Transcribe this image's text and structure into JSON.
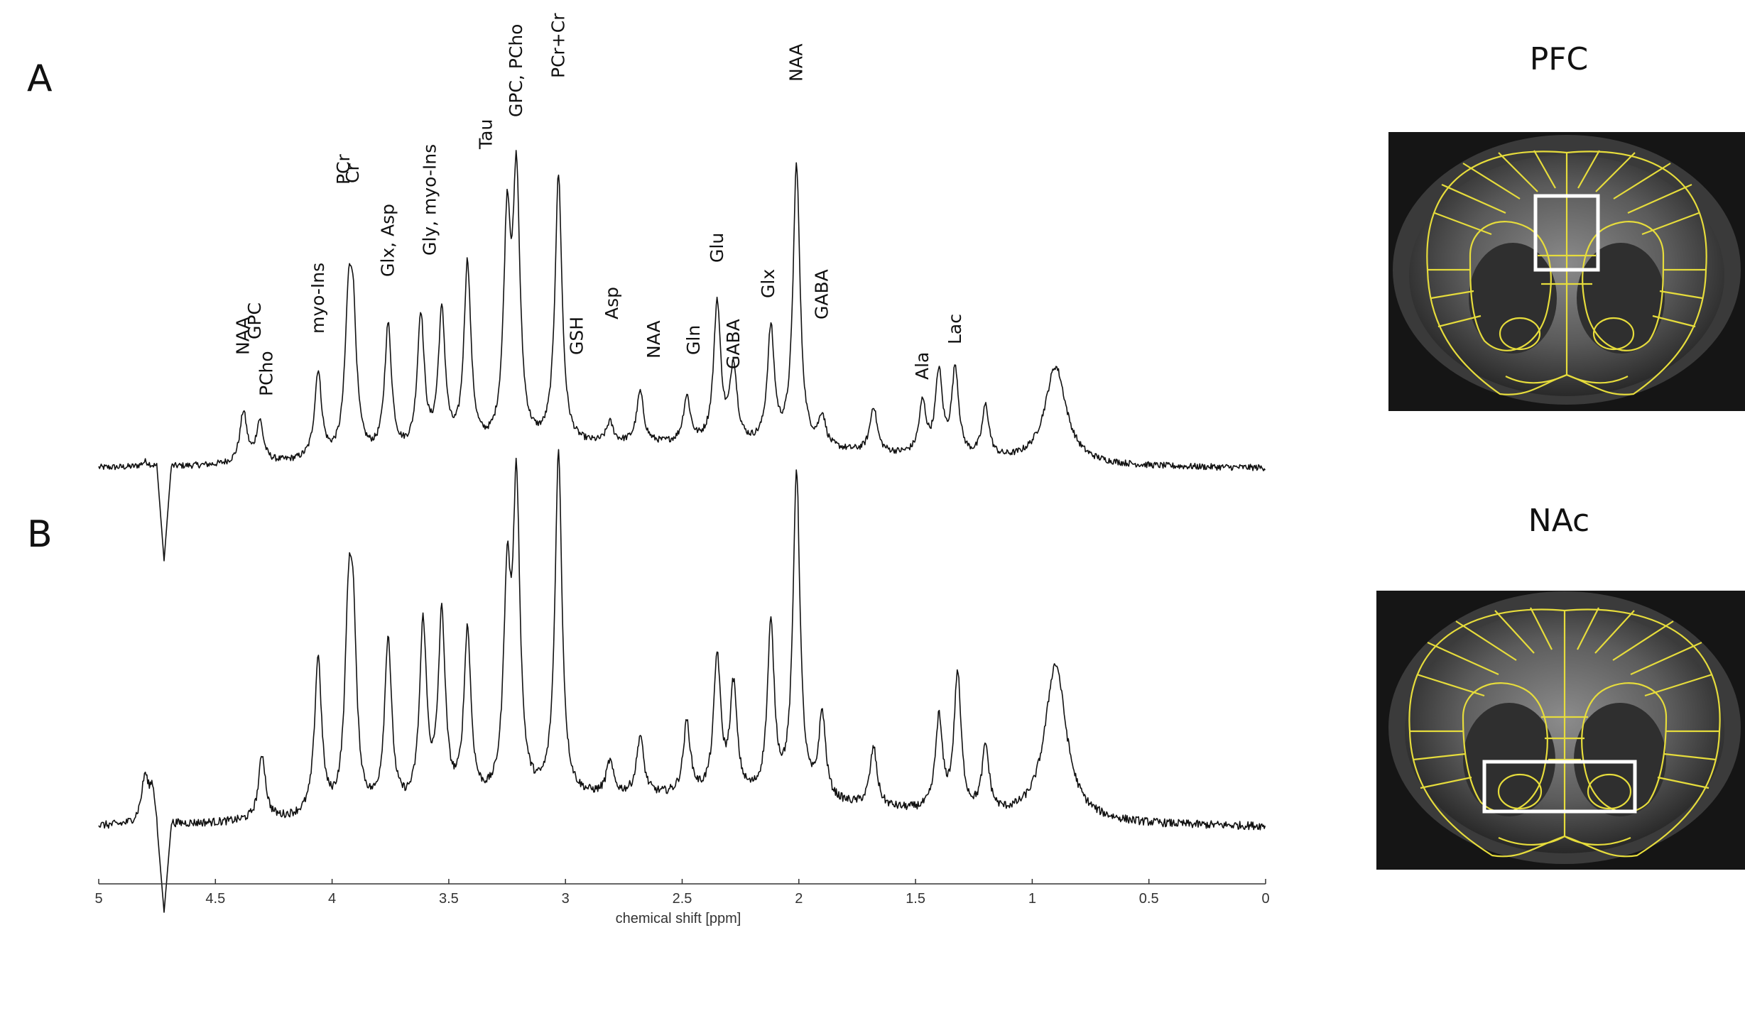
{
  "figure": {
    "panel_letters": [
      "A",
      "B"
    ],
    "regions": [
      {
        "title": "PFC",
        "image": "brain-mri-coronal-slice-with-atlas-overlay"
      },
      {
        "title": "NAc",
        "image": "brain-mri-coronal-slice-with-atlas-overlay"
      }
    ]
  },
  "chart_data": {
    "type": "line",
    "xlabel": "chemical shift [ppm]",
    "ylabel": "",
    "xlim": [
      5,
      0
    ],
    "x_reversed": true,
    "xticks": [
      5,
      4.5,
      4,
      3.5,
      3,
      2.5,
      2,
      1.5,
      1,
      0.5,
      0
    ],
    "xtick_labels": [
      "5",
      "4.5",
      "4",
      "3.5",
      "3",
      "2.5",
      "2",
      "1.5",
      "1",
      "0.5",
      "0"
    ],
    "grid": false,
    "series": [
      {
        "panel": "A",
        "peaks": [
          [
            4.8,
            0.02
          ],
          [
            4.38,
            0.2
          ],
          [
            4.31,
            0.16
          ],
          [
            4.06,
            0.34
          ],
          [
            3.93,
            0.5
          ],
          [
            3.91,
            0.48
          ],
          [
            3.76,
            0.5
          ],
          [
            3.62,
            0.53
          ],
          [
            3.53,
            0.53
          ],
          [
            3.42,
            0.72
          ],
          [
            3.25,
            0.83
          ],
          [
            3.21,
            1.0
          ],
          [
            3.03,
            1.05
          ],
          [
            2.81,
            0.08
          ],
          [
            2.68,
            0.2
          ],
          [
            2.48,
            0.18
          ],
          [
            2.35,
            0.55
          ],
          [
            2.28,
            0.3
          ],
          [
            2.12,
            0.45
          ],
          [
            2.01,
            1.1
          ],
          [
            1.9,
            0.12
          ],
          [
            1.68,
            0.18
          ],
          [
            1.47,
            0.2
          ],
          [
            1.4,
            0.32
          ],
          [
            1.33,
            0.34
          ],
          [
            1.2,
            0.2
          ],
          [
            0.9,
            0.38
          ]
        ]
      },
      {
        "panel": "B",
        "peaks": [
          [
            4.8,
            0.16
          ],
          [
            4.3,
            0.2
          ],
          [
            4.06,
            0.48
          ],
          [
            3.93,
            0.52
          ],
          [
            3.91,
            0.5
          ],
          [
            3.76,
            0.52
          ],
          [
            3.61,
            0.55
          ],
          [
            3.53,
            0.57
          ],
          [
            3.42,
            0.52
          ],
          [
            3.25,
            0.62
          ],
          [
            3.21,
            0.92
          ],
          [
            3.03,
            1.05
          ],
          [
            2.81,
            0.1
          ],
          [
            2.68,
            0.18
          ],
          [
            2.48,
            0.22
          ],
          [
            2.35,
            0.42
          ],
          [
            2.28,
            0.33
          ],
          [
            2.12,
            0.52
          ],
          [
            2.01,
            1.0
          ],
          [
            1.9,
            0.26
          ],
          [
            1.68,
            0.18
          ],
          [
            1.4,
            0.28
          ],
          [
            1.32,
            0.42
          ],
          [
            1.2,
            0.2
          ],
          [
            0.9,
            0.48
          ]
        ]
      }
    ],
    "annotations": [
      {
        "text": "NAA",
        "ppm": 4.38
      },
      {
        "text": "GPC",
        "ppm": 4.33
      },
      {
        "text": "PCho",
        "ppm": 4.28
      },
      {
        "text": "myo-Ins",
        "ppm": 4.06
      },
      {
        "text": "PCr",
        "ppm": 3.95
      },
      {
        "text": "Cr",
        "ppm": 3.91
      },
      {
        "text": "Glx, Asp",
        "ppm": 3.76
      },
      {
        "text": "Gly, myo-Ins",
        "ppm": 3.58
      },
      {
        "text": "Tau",
        "ppm": 3.34
      },
      {
        "text": "GPC, PCho",
        "ppm": 3.21
      },
      {
        "text": "PCr+Cr",
        "ppm": 3.03
      },
      {
        "text": "GSH",
        "ppm": 2.95
      },
      {
        "text": "Asp",
        "ppm": 2.8
      },
      {
        "text": "NAA",
        "ppm": 2.62
      },
      {
        "text": "Gln",
        "ppm": 2.45
      },
      {
        "text": "GABA",
        "ppm": 2.28
      },
      {
        "text": "Glu",
        "ppm": 2.35
      },
      {
        "text": "Glx",
        "ppm": 2.13
      },
      {
        "text": "NAA",
        "ppm": 2.01
      },
      {
        "text": "GABA",
        "ppm": 1.9
      },
      {
        "text": "Ala",
        "ppm": 1.47
      },
      {
        "text": "Lac",
        "ppm": 1.33
      }
    ],
    "colors": {
      "trace": "#111111",
      "atlas": "#e6dc3c",
      "roi_box": "#ffffff"
    }
  }
}
